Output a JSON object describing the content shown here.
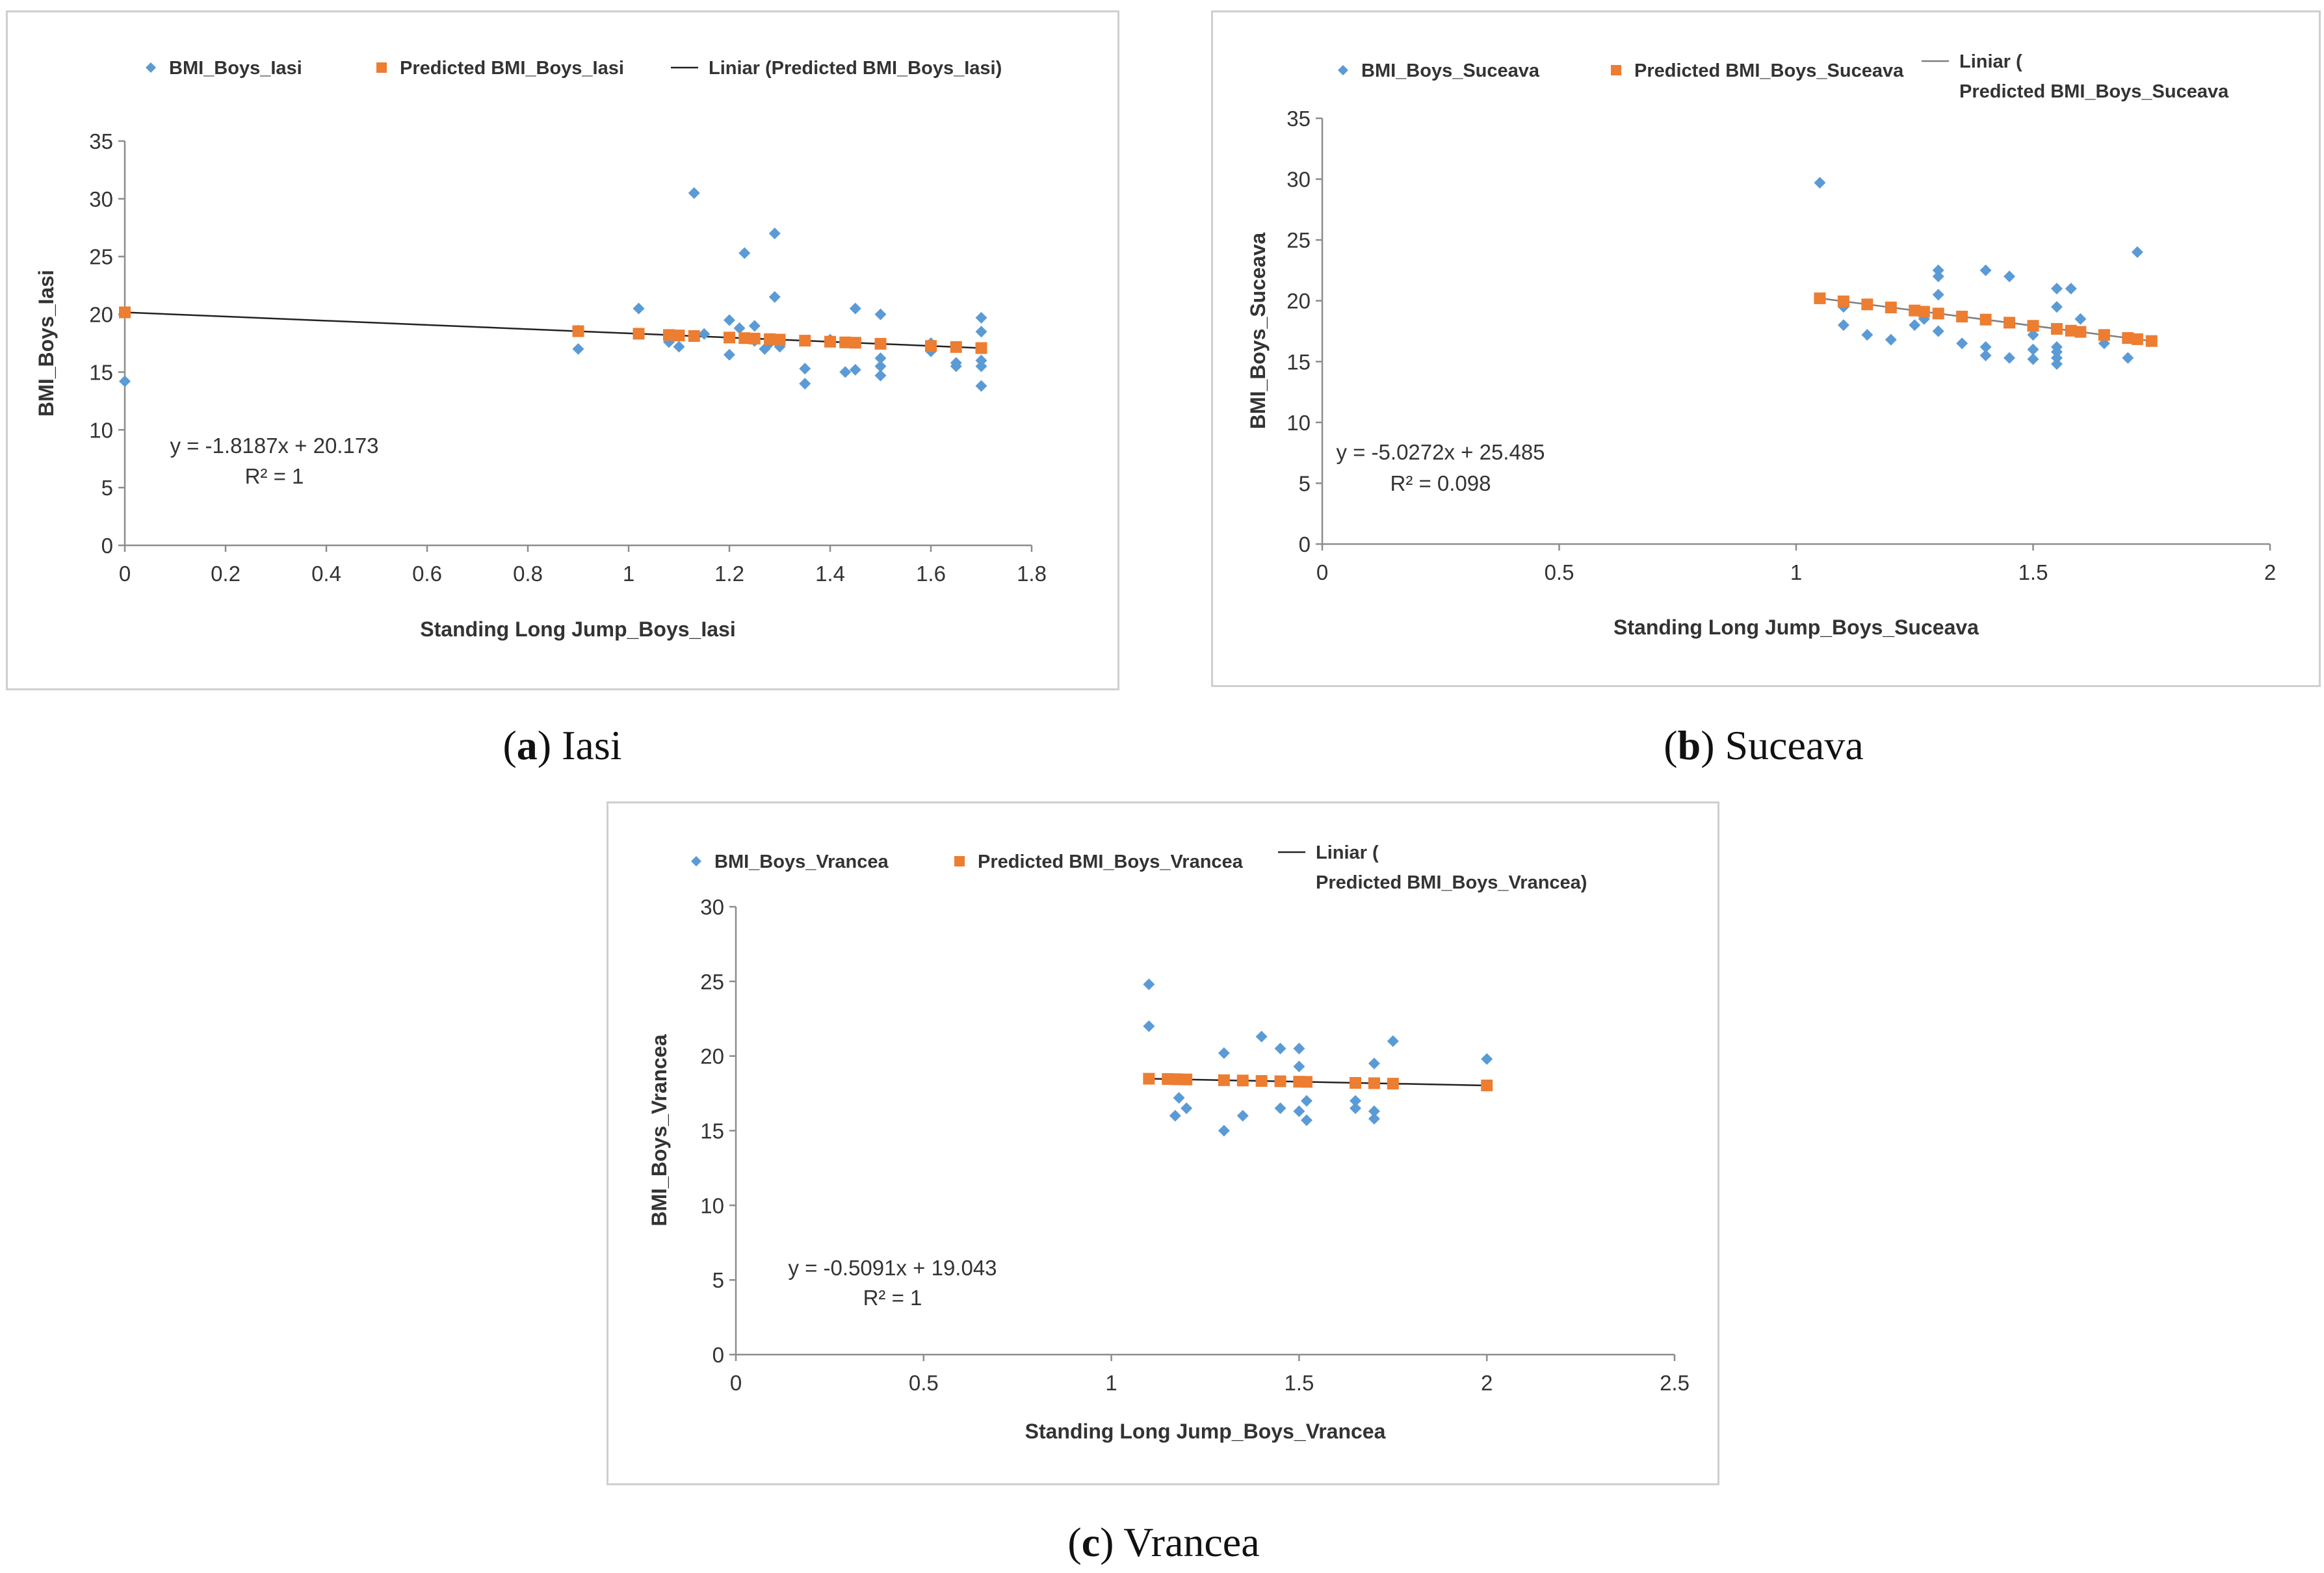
{
  "chart_data": [
    {
      "type": "scatter",
      "xlabel": "Standing Long Jump_Boys_Iasi",
      "ylabel": "BMI_Boys_Iasi",
      "xlim": [
        0,
        1.8
      ],
      "ylim": [
        0,
        35
      ],
      "x_ticks": [
        0,
        0.2,
        0.4,
        0.6,
        0.8,
        1,
        1.2,
        1.4,
        1.6,
        1.8
      ],
      "x_tick_labels": [
        "0",
        "0.2",
        "0.4",
        "0.6",
        "0.8",
        "1",
        "1.2",
        "1.4",
        "1.6",
        "1.8"
      ],
      "y_ticks": [
        0,
        5,
        10,
        15,
        20,
        25,
        30,
        35
      ],
      "y_tick_labels": [
        "0",
        "5",
        "10",
        "15",
        "20",
        "25",
        "30",
        "35"
      ],
      "legend_position": "top",
      "equation": "y = -1.8187x + 20.173",
      "r_squared": "R² = 1",
      "trend": {
        "name": "Liniar (Predicted BMI_Boys_Iasi)",
        "slope": -1.8187,
        "intercept": 20.173,
        "x_range": [
          0,
          1.7
        ],
        "color": "#222222"
      },
      "series": [
        {
          "name": "BMI_Boys_Iasi",
          "marker": "diamond",
          "color": "#5b9bd5",
          "points": [
            [
              0,
              14.2
            ],
            [
              0.9,
              17
            ],
            [
              0.9,
              18.6
            ],
            [
              1.02,
              20.5
            ],
            [
              1.08,
              17.6
            ],
            [
              1.1,
              17.2
            ],
            [
              1.13,
              30.5
            ],
            [
              1.15,
              18.3
            ],
            [
              1.2,
              19.5
            ],
            [
              1.2,
              16.5
            ],
            [
              1.22,
              18.8
            ],
            [
              1.23,
              25.3
            ],
            [
              1.25,
              19
            ],
            [
              1.25,
              17.7
            ],
            [
              1.27,
              17
            ],
            [
              1.28,
              17.5
            ],
            [
              1.29,
              21.5
            ],
            [
              1.29,
              27
            ],
            [
              1.3,
              17.2
            ],
            [
              1.35,
              15.3
            ],
            [
              1.35,
              14
            ],
            [
              1.4,
              17.8
            ],
            [
              1.43,
              15
            ],
            [
              1.45,
              20.5
            ],
            [
              1.45,
              15.2
            ],
            [
              1.5,
              20
            ],
            [
              1.5,
              16.2
            ],
            [
              1.5,
              15.5
            ],
            [
              1.5,
              14.7
            ],
            [
              1.6,
              17.5
            ],
            [
              1.6,
              16.8
            ],
            [
              1.65,
              15.8
            ],
            [
              1.65,
              15.5
            ],
            [
              1.7,
              19.7
            ],
            [
              1.7,
              18.5
            ],
            [
              1.7,
              16
            ],
            [
              1.7,
              15.5
            ],
            [
              1.7,
              13.8
            ]
          ]
        },
        {
          "name": "Predicted BMI_Boys_Iasi",
          "marker": "square",
          "color": "#ed7d31",
          "points": [
            [
              0,
              20.17
            ],
            [
              0.9,
              18.54
            ],
            [
              1.02,
              18.32
            ],
            [
              1.08,
              18.21
            ],
            [
              1.1,
              18.17
            ],
            [
              1.13,
              18.12
            ],
            [
              1.2,
              17.99
            ],
            [
              1.23,
              17.94
            ],
            [
              1.25,
              17.9
            ],
            [
              1.28,
              17.85
            ],
            [
              1.3,
              17.81
            ],
            [
              1.35,
              17.72
            ],
            [
              1.4,
              17.63
            ],
            [
              1.43,
              17.57
            ],
            [
              1.45,
              17.54
            ],
            [
              1.5,
              17.45
            ],
            [
              1.6,
              17.26
            ],
            [
              1.65,
              17.17
            ],
            [
              1.7,
              17.08
            ]
          ]
        }
      ]
    },
    {
      "type": "scatter",
      "xlabel": "Standing Long Jump_Boys_Suceava",
      "ylabel": "BMI_Boys_Suceava",
      "xlim": [
        0,
        2
      ],
      "ylim": [
        0,
        35
      ],
      "x_ticks": [
        0,
        0.5,
        1,
        1.5,
        2
      ],
      "x_tick_labels": [
        "0",
        "0.5",
        "1",
        "1.5",
        "2"
      ],
      "y_ticks": [
        0,
        5,
        10,
        15,
        20,
        25,
        30,
        35
      ],
      "y_tick_labels": [
        "0",
        "5",
        "10",
        "15",
        "20",
        "25",
        "30",
        "35"
      ],
      "legend_position": "top",
      "equation": "y = -5.0272x + 25.485",
      "r_squared": "R² = 0.098",
      "trend": {
        "name": "Liniar (Predicted BMI_Boys_Suceava",
        "slope": -5.0272,
        "intercept": 25.485,
        "x_range": [
          1.05,
          1.75
        ],
        "color": "#7f7f7f"
      },
      "series": [
        {
          "name": "BMI_Boys_Suceava",
          "marker": "diamond",
          "color": "#5b9bd5",
          "points": [
            [
              1.05,
              29.7
            ],
            [
              1.1,
              19.5
            ],
            [
              1.1,
              18
            ],
            [
              1.15,
              17.2
            ],
            [
              1.2,
              16.8
            ],
            [
              1.25,
              18
            ],
            [
              1.27,
              18.5
            ],
            [
              1.3,
              22.5
            ],
            [
              1.3,
              22
            ],
            [
              1.3,
              20.5
            ],
            [
              1.3,
              17.5
            ],
            [
              1.35,
              16.5
            ],
            [
              1.4,
              22.5
            ],
            [
              1.4,
              16.2
            ],
            [
              1.4,
              15.5
            ],
            [
              1.45,
              22
            ],
            [
              1.45,
              15.3
            ],
            [
              1.5,
              17.2
            ],
            [
              1.5,
              16
            ],
            [
              1.5,
              15.2
            ],
            [
              1.55,
              21
            ],
            [
              1.55,
              19.5
            ],
            [
              1.55,
              16.2
            ],
            [
              1.55,
              15.8
            ],
            [
              1.55,
              15.3
            ],
            [
              1.55,
              14.8
            ],
            [
              1.58,
              21
            ],
            [
              1.6,
              18.5
            ],
            [
              1.65,
              16.5
            ],
            [
              1.7,
              15.3
            ],
            [
              1.72,
              24
            ]
          ]
        },
        {
          "name": "Predicted BMI_Boys_Suceava",
          "marker": "square",
          "color": "#ed7d31",
          "points": [
            [
              1.05,
              20.2
            ],
            [
              1.1,
              19.95
            ],
            [
              1.15,
              19.7
            ],
            [
              1.2,
              19.45
            ],
            [
              1.25,
              19.2
            ],
            [
              1.27,
              19.1
            ],
            [
              1.3,
              18.95
            ],
            [
              1.35,
              18.7
            ],
            [
              1.4,
              18.45
            ],
            [
              1.45,
              18.2
            ],
            [
              1.5,
              17.94
            ],
            [
              1.55,
              17.69
            ],
            [
              1.58,
              17.54
            ],
            [
              1.6,
              17.44
            ],
            [
              1.65,
              17.19
            ],
            [
              1.7,
              16.94
            ],
            [
              1.72,
              16.84
            ],
            [
              1.75,
              16.69
            ]
          ]
        }
      ]
    },
    {
      "type": "scatter",
      "xlabel": "Standing Long Jump_Boys_Vrancea",
      "ylabel": "BMI_Boys_Vrancea",
      "xlim": [
        0,
        2.5
      ],
      "ylim": [
        0,
        30
      ],
      "x_ticks": [
        0,
        0.5,
        1,
        1.5,
        2,
        2.5
      ],
      "x_tick_labels": [
        "0",
        "0.5",
        "1",
        "1.5",
        "2",
        "2.5"
      ],
      "y_ticks": [
        0,
        5,
        10,
        15,
        20,
        25,
        30
      ],
      "y_tick_labels": [
        "0",
        "5",
        "10",
        "15",
        "20",
        "25",
        "30"
      ],
      "legend_position": "top",
      "equation": "y = -0.5091x + 19.043",
      "r_squared": "R² = 1",
      "trend": {
        "name": "Liniar (Predicted BMI_Boys_Vrancea)",
        "slope": -0.5091,
        "intercept": 19.043,
        "x_range": [
          1.1,
          2
        ],
        "color": "#222222"
      },
      "series": [
        {
          "name": "BMI_Boys_Vrancea",
          "marker": "diamond",
          "color": "#5b9bd5",
          "points": [
            [
              1.1,
              24.8
            ],
            [
              1.1,
              22
            ],
            [
              1.17,
              16
            ],
            [
              1.18,
              17.2
            ],
            [
              1.2,
              16.5
            ],
            [
              1.3,
              20.2
            ],
            [
              1.3,
              15
            ],
            [
              1.35,
              16
            ],
            [
              1.4,
              21.3
            ],
            [
              1.45,
              20.5
            ],
            [
              1.45,
              16.5
            ],
            [
              1.5,
              20.5
            ],
            [
              1.5,
              19.3
            ],
            [
              1.5,
              16.3
            ],
            [
              1.52,
              17
            ],
            [
              1.52,
              15.7
            ],
            [
              1.65,
              17
            ],
            [
              1.65,
              16.5
            ],
            [
              1.7,
              19.5
            ],
            [
              1.7,
              16.3
            ],
            [
              1.7,
              15.8
            ],
            [
              1.75,
              21
            ],
            [
              2,
              19.8
            ]
          ]
        },
        {
          "name": "Predicted BMI_Boys_Vrancea",
          "marker": "square",
          "color": "#ed7d31",
          "points": [
            [
              1.1,
              18.48
            ],
            [
              1.15,
              18.46
            ],
            [
              1.17,
              18.45
            ],
            [
              1.18,
              18.44
            ],
            [
              1.2,
              18.43
            ],
            [
              1.3,
              18.38
            ],
            [
              1.35,
              18.36
            ],
            [
              1.4,
              18.33
            ],
            [
              1.45,
              18.31
            ],
            [
              1.5,
              18.28
            ],
            [
              1.52,
              18.27
            ],
            [
              1.65,
              18.2
            ],
            [
              1.7,
              18.18
            ],
            [
              1.75,
              18.15
            ],
            [
              2,
              18.03
            ]
          ]
        }
      ]
    }
  ],
  "captions": [
    {
      "letter": "a",
      "text": "Iasi"
    },
    {
      "letter": "b",
      "text": "Suceava"
    },
    {
      "letter": "c",
      "text": "Vrancea"
    }
  ]
}
